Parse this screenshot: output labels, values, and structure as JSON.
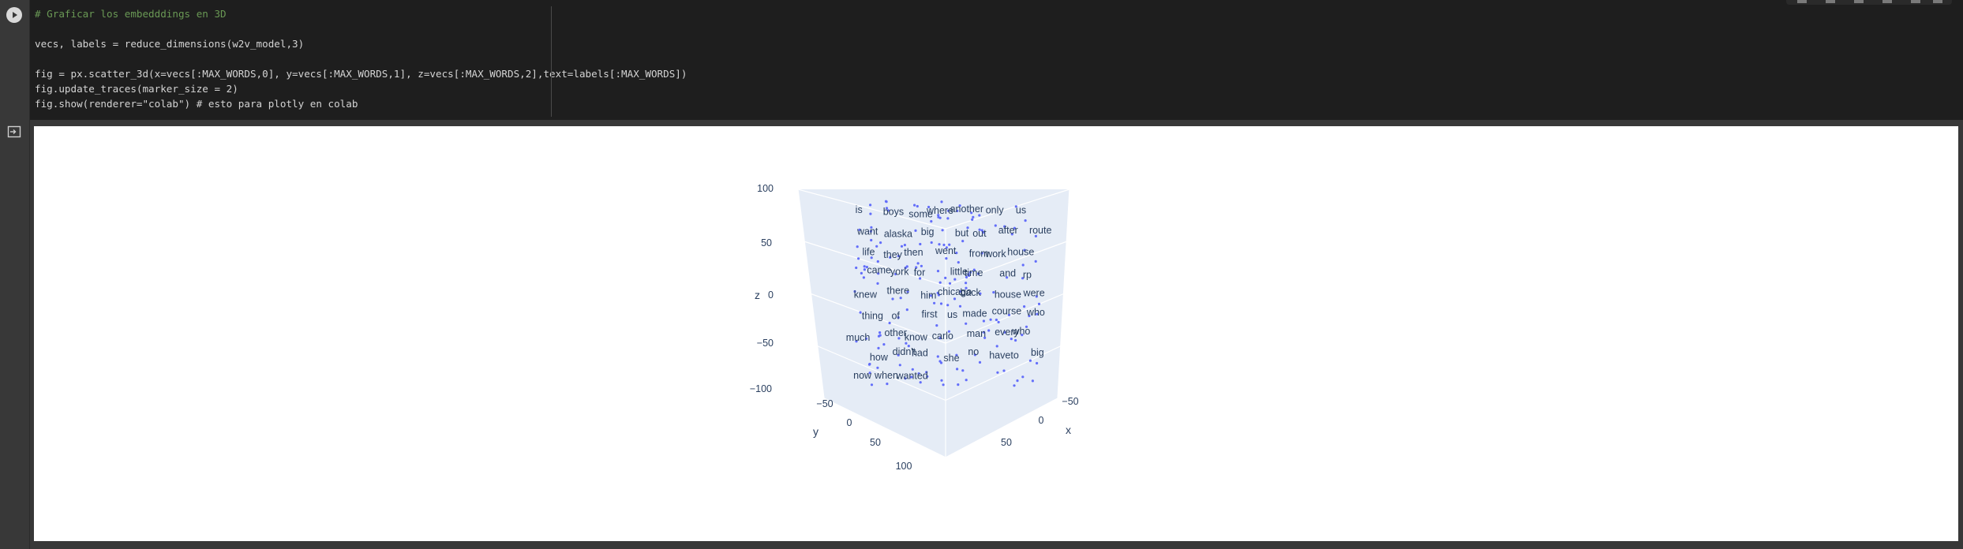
{
  "code_lines": [
    "# Graficar los embedddings en 3D",
    "",
    "vecs, labels = reduce_dimensions(w2v_model,3)",
    "",
    "fig = px.scatter_3d(x=vecs[:MAX_WORDS,0], y=vecs[:MAX_WORDS,1], z=vecs[:MAX_WORDS,2],text=labels[:MAX_WORDS])",
    "fig.update_traces(marker_size = 2)",
    "fig.show(renderer=\"colab\") # esto para plotly en colab"
  ],
  "colors": {
    "plot_bg": "#e5ecf6",
    "marker": "#636efa",
    "text": "#2a3f5f"
  },
  "chart_data": {
    "type": "scatter3d",
    "axes": {
      "x": {
        "title": "x",
        "ticks": [
          "−50",
          "0",
          "50"
        ]
      },
      "y": {
        "title": "y",
        "ticks": [
          "−50",
          "0",
          "50",
          "100"
        ]
      },
      "z": {
        "title": "z",
        "ticks": [
          "100",
          "50",
          "0",
          "−50",
          "−100"
        ]
      }
    },
    "word_labels": [
      "is",
      "boys",
      "some",
      "where",
      "another",
      "only",
      "us",
      "want",
      "alaska",
      "big",
      "but",
      "out",
      "after",
      "route",
      "life",
      "they",
      "then",
      "went",
      "from",
      "work",
      "house",
      "came",
      "york",
      "for",
      "little",
      "time",
      "and",
      "rp",
      "knew",
      "there",
      "him",
      "chicago",
      "back",
      "house",
      "were",
      "thing",
      "of",
      "first",
      "us",
      "made",
      "course",
      "who",
      "much",
      "other",
      "know",
      "carlo",
      "man",
      "every",
      "who",
      "how",
      "didn't",
      "had",
      "she",
      "no",
      "haveto",
      "big",
      "now",
      "when",
      "wanted"
    ]
  }
}
